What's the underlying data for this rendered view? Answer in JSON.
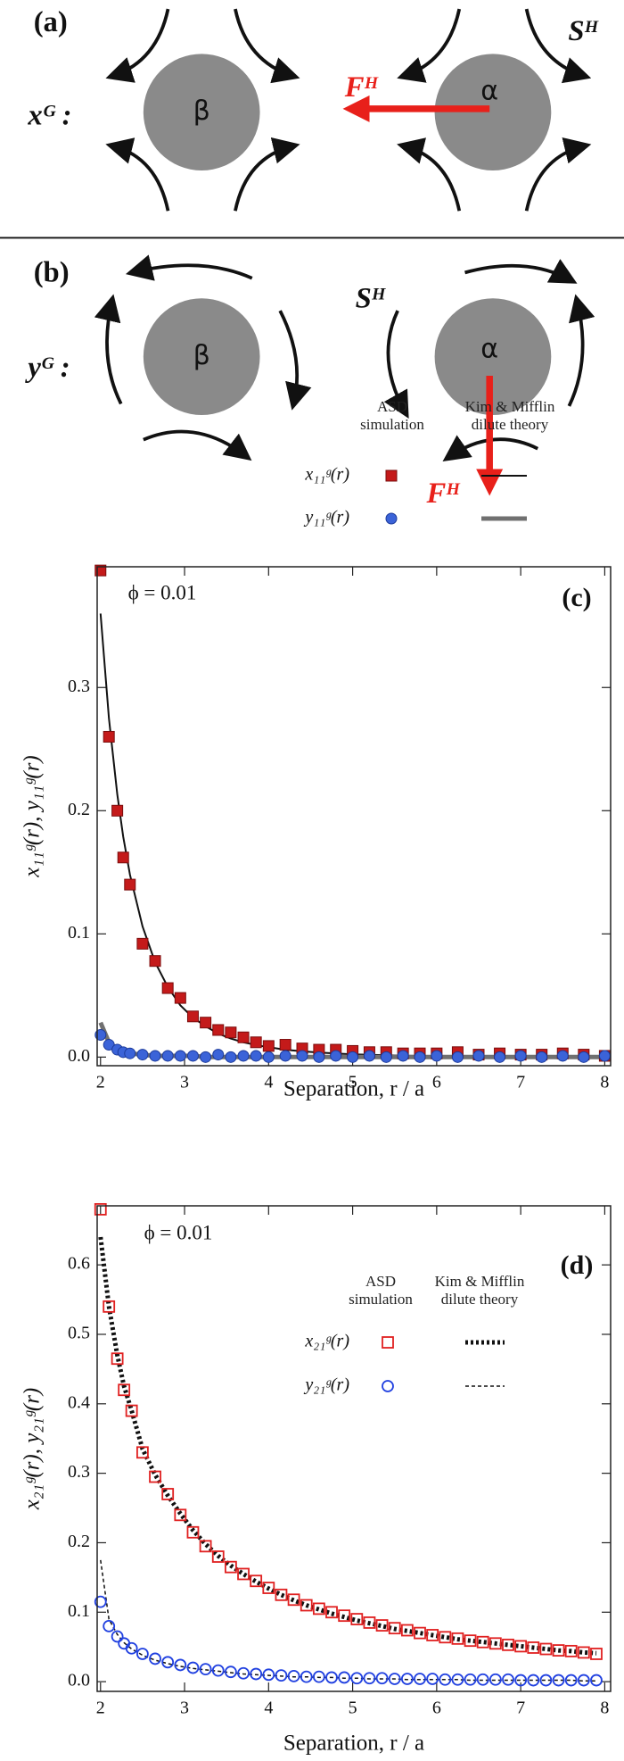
{
  "diagram": {
    "a": {
      "label": "(a)",
      "field": "xᴳ :",
      "left_particle": "β",
      "right_particle": "α",
      "force": "Fᴴ",
      "stresslet": "Sᴴ"
    },
    "b": {
      "label": "(b)",
      "field": "yᴳ :",
      "left_particle": "β",
      "right_particle": "α",
      "force": "Fᴴ",
      "stresslet": "Sᴴ"
    }
  },
  "chart_data": [
    {
      "type": "scatter",
      "panel_label": "(c)",
      "annotation": "ϕ = 0.01",
      "x_label": "Separation, r / a",
      "y_label": "x₁₁ᵍ(r), y₁₁ᵍ(r)",
      "legend_columns": [
        "ASD simulation",
        "Kim & Mifflin dilute theory"
      ],
      "xlim": [
        1.96,
        8.07
      ],
      "xticks": [
        2,
        3,
        4,
        5,
        6,
        7,
        8
      ],
      "ylim": [
        -0.007,
        0.398
      ],
      "yticks": [
        {
          "value": 0,
          "label": "0.0"
        },
        {
          "value": 0.1,
          "label": "0.1"
        },
        {
          "value": 0.2,
          "label": "0.2"
        },
        {
          "value": 0.3,
          "label": "0.3"
        }
      ],
      "x": [
        2.0,
        2.1,
        2.2,
        2.27,
        2.35,
        2.5,
        2.65,
        2.8,
        2.95,
        3.1,
        3.25,
        3.4,
        3.55,
        3.7,
        3.85,
        4.0,
        4.2,
        4.4,
        4.6,
        4.8,
        5.0,
        5.2,
        5.4,
        5.6,
        5.8,
        6.0,
        6.25,
        6.5,
        6.75,
        7.0,
        7.25,
        7.5,
        7.75,
        8.0
      ],
      "series": [
        {
          "name": "x₁₁ᵍ(r)",
          "color": "#c41a1a",
          "marker": "square",
          "filled": true,
          "values": [
            0.395,
            0.26,
            0.2,
            0.162,
            0.14,
            0.092,
            0.078,
            0.056,
            0.048,
            0.033,
            0.028,
            0.022,
            0.02,
            0.016,
            0.012,
            0.009,
            0.01,
            0.007,
            0.006,
            0.006,
            0.005,
            0.004,
            0.004,
            0.003,
            0.003,
            0.003,
            0.004,
            0.002,
            0.003,
            0.002,
            0.002,
            0.003,
            0.002,
            0.001
          ],
          "theory": {
            "color": "#111111",
            "style": "solid",
            "values": [
              0.36,
              0.275,
              0.213,
              0.179,
              0.148,
              0.106,
              0.077,
              0.057,
              0.042,
              0.032,
              0.025,
              0.019,
              0.015,
              0.012,
              0.0098,
              0.008,
              0.006,
              0.0047,
              0.0037,
              0.0029,
              0.0023,
              0.0019,
              0.0015,
              0.0012,
              0.001,
              0.0009,
              0.0007,
              0.0006,
              0.0005,
              0.0004,
              0.0003,
              0.0003,
              0.0002,
              0.0002
            ]
          }
        },
        {
          "name": "y₁₁ᵍ(r)",
          "color": "#3b63d8",
          "marker": "circle",
          "filled": true,
          "values": [
            0.018,
            0.01,
            0.006,
            0.004,
            0.003,
            0.002,
            0.001,
            0.001,
            0.001,
            0.001,
            0,
            0.002,
            0,
            0.001,
            0.001,
            0,
            0.001,
            0.001,
            0,
            0.001,
            0,
            0.001,
            0,
            0.001,
            0,
            0.001,
            0,
            0.001,
            0,
            0.001,
            0,
            0.001,
            0,
            0.001
          ],
          "theory": {
            "color": "#707070",
            "style": "thick",
            "values": [
              0.028,
              0.012,
              0.006,
              0.004,
              0.003,
              0.002,
              0.001,
              0.001,
              0.001,
              0.001,
              0,
              0,
              0,
              0,
              0,
              0,
              0,
              0,
              0,
              0,
              0,
              0,
              0,
              0,
              0,
              0,
              0,
              0,
              0,
              0,
              0,
              0,
              0,
              0
            ]
          }
        }
      ]
    },
    {
      "type": "scatter",
      "panel_label": "(d)",
      "annotation": "ϕ = 0.01",
      "x_label": "Separation, r / a",
      "y_label": "x₂₁ᵍ(r), y₂₁ᵍ(r)",
      "legend_columns": [
        "ASD simulation",
        "Kim & Mifflin dilute theory"
      ],
      "xlim": [
        1.96,
        8.07
      ],
      "xticks": [
        2,
        3,
        4,
        5,
        6,
        7,
        8
      ],
      "ylim": [
        -0.014,
        0.685
      ],
      "yticks": [
        {
          "value": 0,
          "label": "0.0"
        },
        {
          "value": 0.1,
          "label": "0.1"
        },
        {
          "value": 0.2,
          "label": "0.2"
        },
        {
          "value": 0.3,
          "label": "0.3"
        },
        {
          "value": 0.4,
          "label": "0.4"
        },
        {
          "value": 0.5,
          "label": "0.5"
        },
        {
          "value": 0.6,
          "label": "0.6"
        }
      ],
      "x": [
        2.0,
        2.1,
        2.2,
        2.28,
        2.37,
        2.5,
        2.65,
        2.8,
        2.95,
        3.1,
        3.25,
        3.4,
        3.55,
        3.7,
        3.85,
        4.0,
        4.15,
        4.3,
        4.45,
        4.6,
        4.75,
        4.9,
        5.05,
        5.2,
        5.35,
        5.5,
        5.65,
        5.8,
        5.95,
        6.1,
        6.25,
        6.4,
        6.55,
        6.7,
        6.85,
        7.0,
        7.15,
        7.3,
        7.45,
        7.6,
        7.75,
        7.9
      ],
      "series": [
        {
          "name": "x₂₁ᵍ(r)",
          "color": "#e02020",
          "marker": "square",
          "filled": false,
          "values": [
            0.68,
            0.54,
            0.465,
            0.42,
            0.39,
            0.33,
            0.295,
            0.27,
            0.24,
            0.215,
            0.195,
            0.18,
            0.165,
            0.155,
            0.145,
            0.135,
            0.125,
            0.118,
            0.11,
            0.105,
            0.1,
            0.095,
            0.09,
            0.085,
            0.081,
            0.077,
            0.074,
            0.07,
            0.067,
            0.064,
            0.062,
            0.059,
            0.057,
            0.055,
            0.053,
            0.051,
            0.049,
            0.047,
            0.045,
            0.044,
            0.042,
            0.04
          ],
          "theory": {
            "color": "#111111",
            "style": "dotted",
            "values": [
              0.64,
              0.54,
              0.47,
              0.425,
              0.39,
              0.335,
              0.298,
              0.268,
              0.242,
              0.218,
              0.198,
              0.181,
              0.167,
              0.155,
              0.144,
              0.134,
              0.125,
              0.117,
              0.11,
              0.104,
              0.098,
              0.093,
              0.088,
              0.084,
              0.08,
              0.076,
              0.073,
              0.07,
              0.067,
              0.064,
              0.061,
              0.059,
              0.057,
              0.055,
              0.053,
              0.051,
              0.049,
              0.047,
              0.045,
              0.044,
              0.042,
              0.041
            ]
          }
        },
        {
          "name": "y₂₁ᵍ(r)",
          "color": "#2040e0",
          "marker": "circle",
          "filled": false,
          "values": [
            0.115,
            0.08,
            0.065,
            0.055,
            0.048,
            0.04,
            0.033,
            0.028,
            0.024,
            0.02,
            0.018,
            0.016,
            0.014,
            0.012,
            0.011,
            0.01,
            0.009,
            0.008,
            0.007,
            0.007,
            0.006,
            0.006,
            0.005,
            0.005,
            0.005,
            0.004,
            0.004,
            0.004,
            0.004,
            0.003,
            0.003,
            0.003,
            0.003,
            0.003,
            0.003,
            0.002,
            0.002,
            0.002,
            0.002,
            0.002,
            0.002,
            0.002
          ],
          "theory": {
            "color": "#111111",
            "style": "dashed",
            "values": [
              0.175,
              0.09,
              0.068,
              0.056,
              0.047,
              0.038,
              0.031,
              0.026,
              0.022,
              0.019,
              0.017,
              0.015,
              0.013,
              0.011,
              0.01,
              0.009,
              0.008,
              0.007,
              0.007,
              0.006,
              0.006,
              0.005,
              0.005,
              0.004,
              0.004,
              0.004,
              0.003,
              0.003,
              0.003,
              0.003,
              0.003,
              0.002,
              0.002,
              0.002,
              0.002,
              0.002,
              0.002,
              0.002,
              0.002,
              0.002,
              0.001,
              0.001
            ]
          }
        }
      ]
    }
  ]
}
